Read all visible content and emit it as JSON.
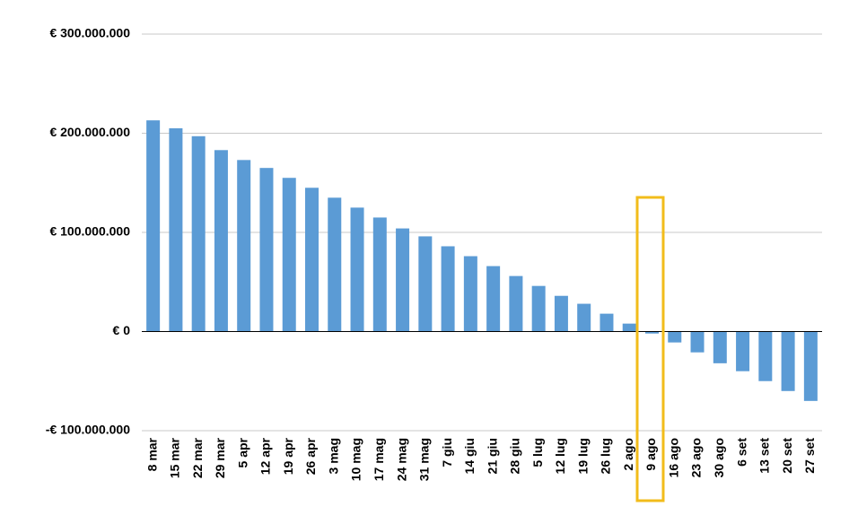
{
  "chart_data": {
    "type": "bar",
    "categories": [
      "8 mar",
      "15 mar",
      "22 mar",
      "29 mar",
      "5 apr",
      "12 apr",
      "19 apr",
      "26 apr",
      "3 mag",
      "10 mag",
      "17 mag",
      "24 mag",
      "31 mag",
      "7 giu",
      "14 giu",
      "21 giu",
      "28 giu",
      "5 lug",
      "12 lug",
      "19 lug",
      "26 lug",
      "2 ago",
      "9 ago",
      "16 ago",
      "23 ago",
      "30 ago",
      "6 set",
      "13 set",
      "20 set",
      "27 set"
    ],
    "values": [
      213000000,
      205000000,
      197000000,
      183000000,
      173000000,
      165000000,
      155000000,
      145000000,
      135000000,
      125000000,
      115000000,
      104000000,
      96000000,
      86000000,
      76000000,
      66000000,
      56000000,
      46000000,
      36000000,
      28000000,
      18000000,
      8000000,
      -2000000,
      -11000000,
      -21000000,
      -32000000,
      -40000000,
      -50000000,
      -60000000,
      -70000000
    ],
    "color": "#5b9bd5",
    "ylim": [
      -100000000,
      300000000
    ],
    "yticks": [
      {
        "value": -100000000,
        "label": "-€ 100.000.000"
      },
      {
        "value": 0,
        "label": "€ 0"
      },
      {
        "value": 100000000,
        "label": "€ 100.000.000"
      },
      {
        "value": 200000000,
        "label": "€ 200.000.000"
      },
      {
        "value": 300000000,
        "label": "€ 300.000.000"
      }
    ],
    "grid": true
  }
}
